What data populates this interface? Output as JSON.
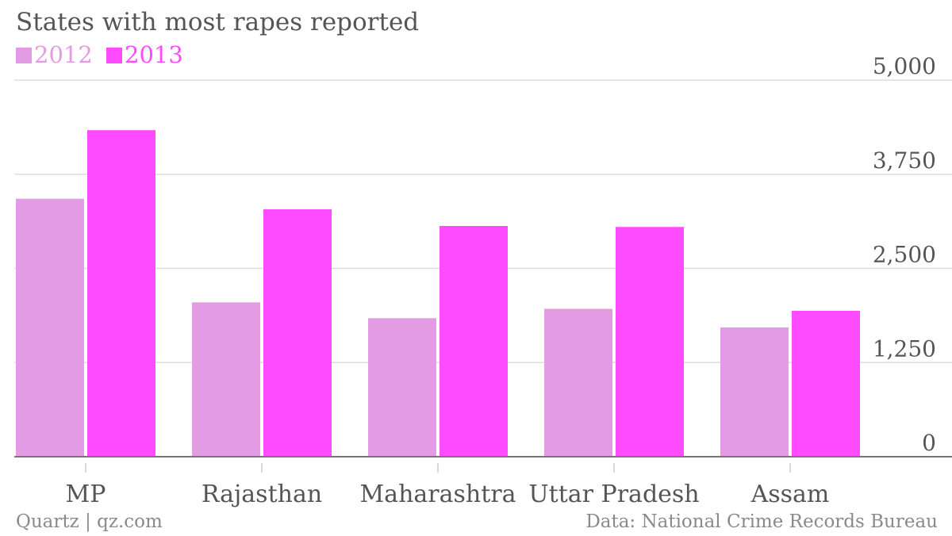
{
  "chart_data": {
    "type": "bar",
    "title": "States with most rapes reported",
    "categories": [
      "MP",
      "Rajasthan",
      "Maharashtra",
      "Uttar Pradesh",
      "Assam"
    ],
    "series": [
      {
        "name": "2012",
        "color": "#e39be3",
        "values": [
          3425,
          2049,
          1839,
          1963,
          1716
        ]
      },
      {
        "name": "2013",
        "color": "#ff4bff",
        "values": [
          4335,
          3285,
          3063,
          3050,
          1937
        ]
      }
    ],
    "yticks": [
      "0",
      "1,250",
      "2,500",
      "3,750",
      "5,000"
    ],
    "ytick_values": [
      0,
      1250,
      2500,
      3750,
      5000
    ],
    "ylim": [
      0,
      5000
    ],
    "xlabel": "",
    "ylabel": "",
    "y_axis_position": "right",
    "grid": true,
    "legend_position": "top-left"
  },
  "footer": {
    "left": "Quartz | qz.com",
    "right": "Data: National Crime Records Bureau"
  }
}
